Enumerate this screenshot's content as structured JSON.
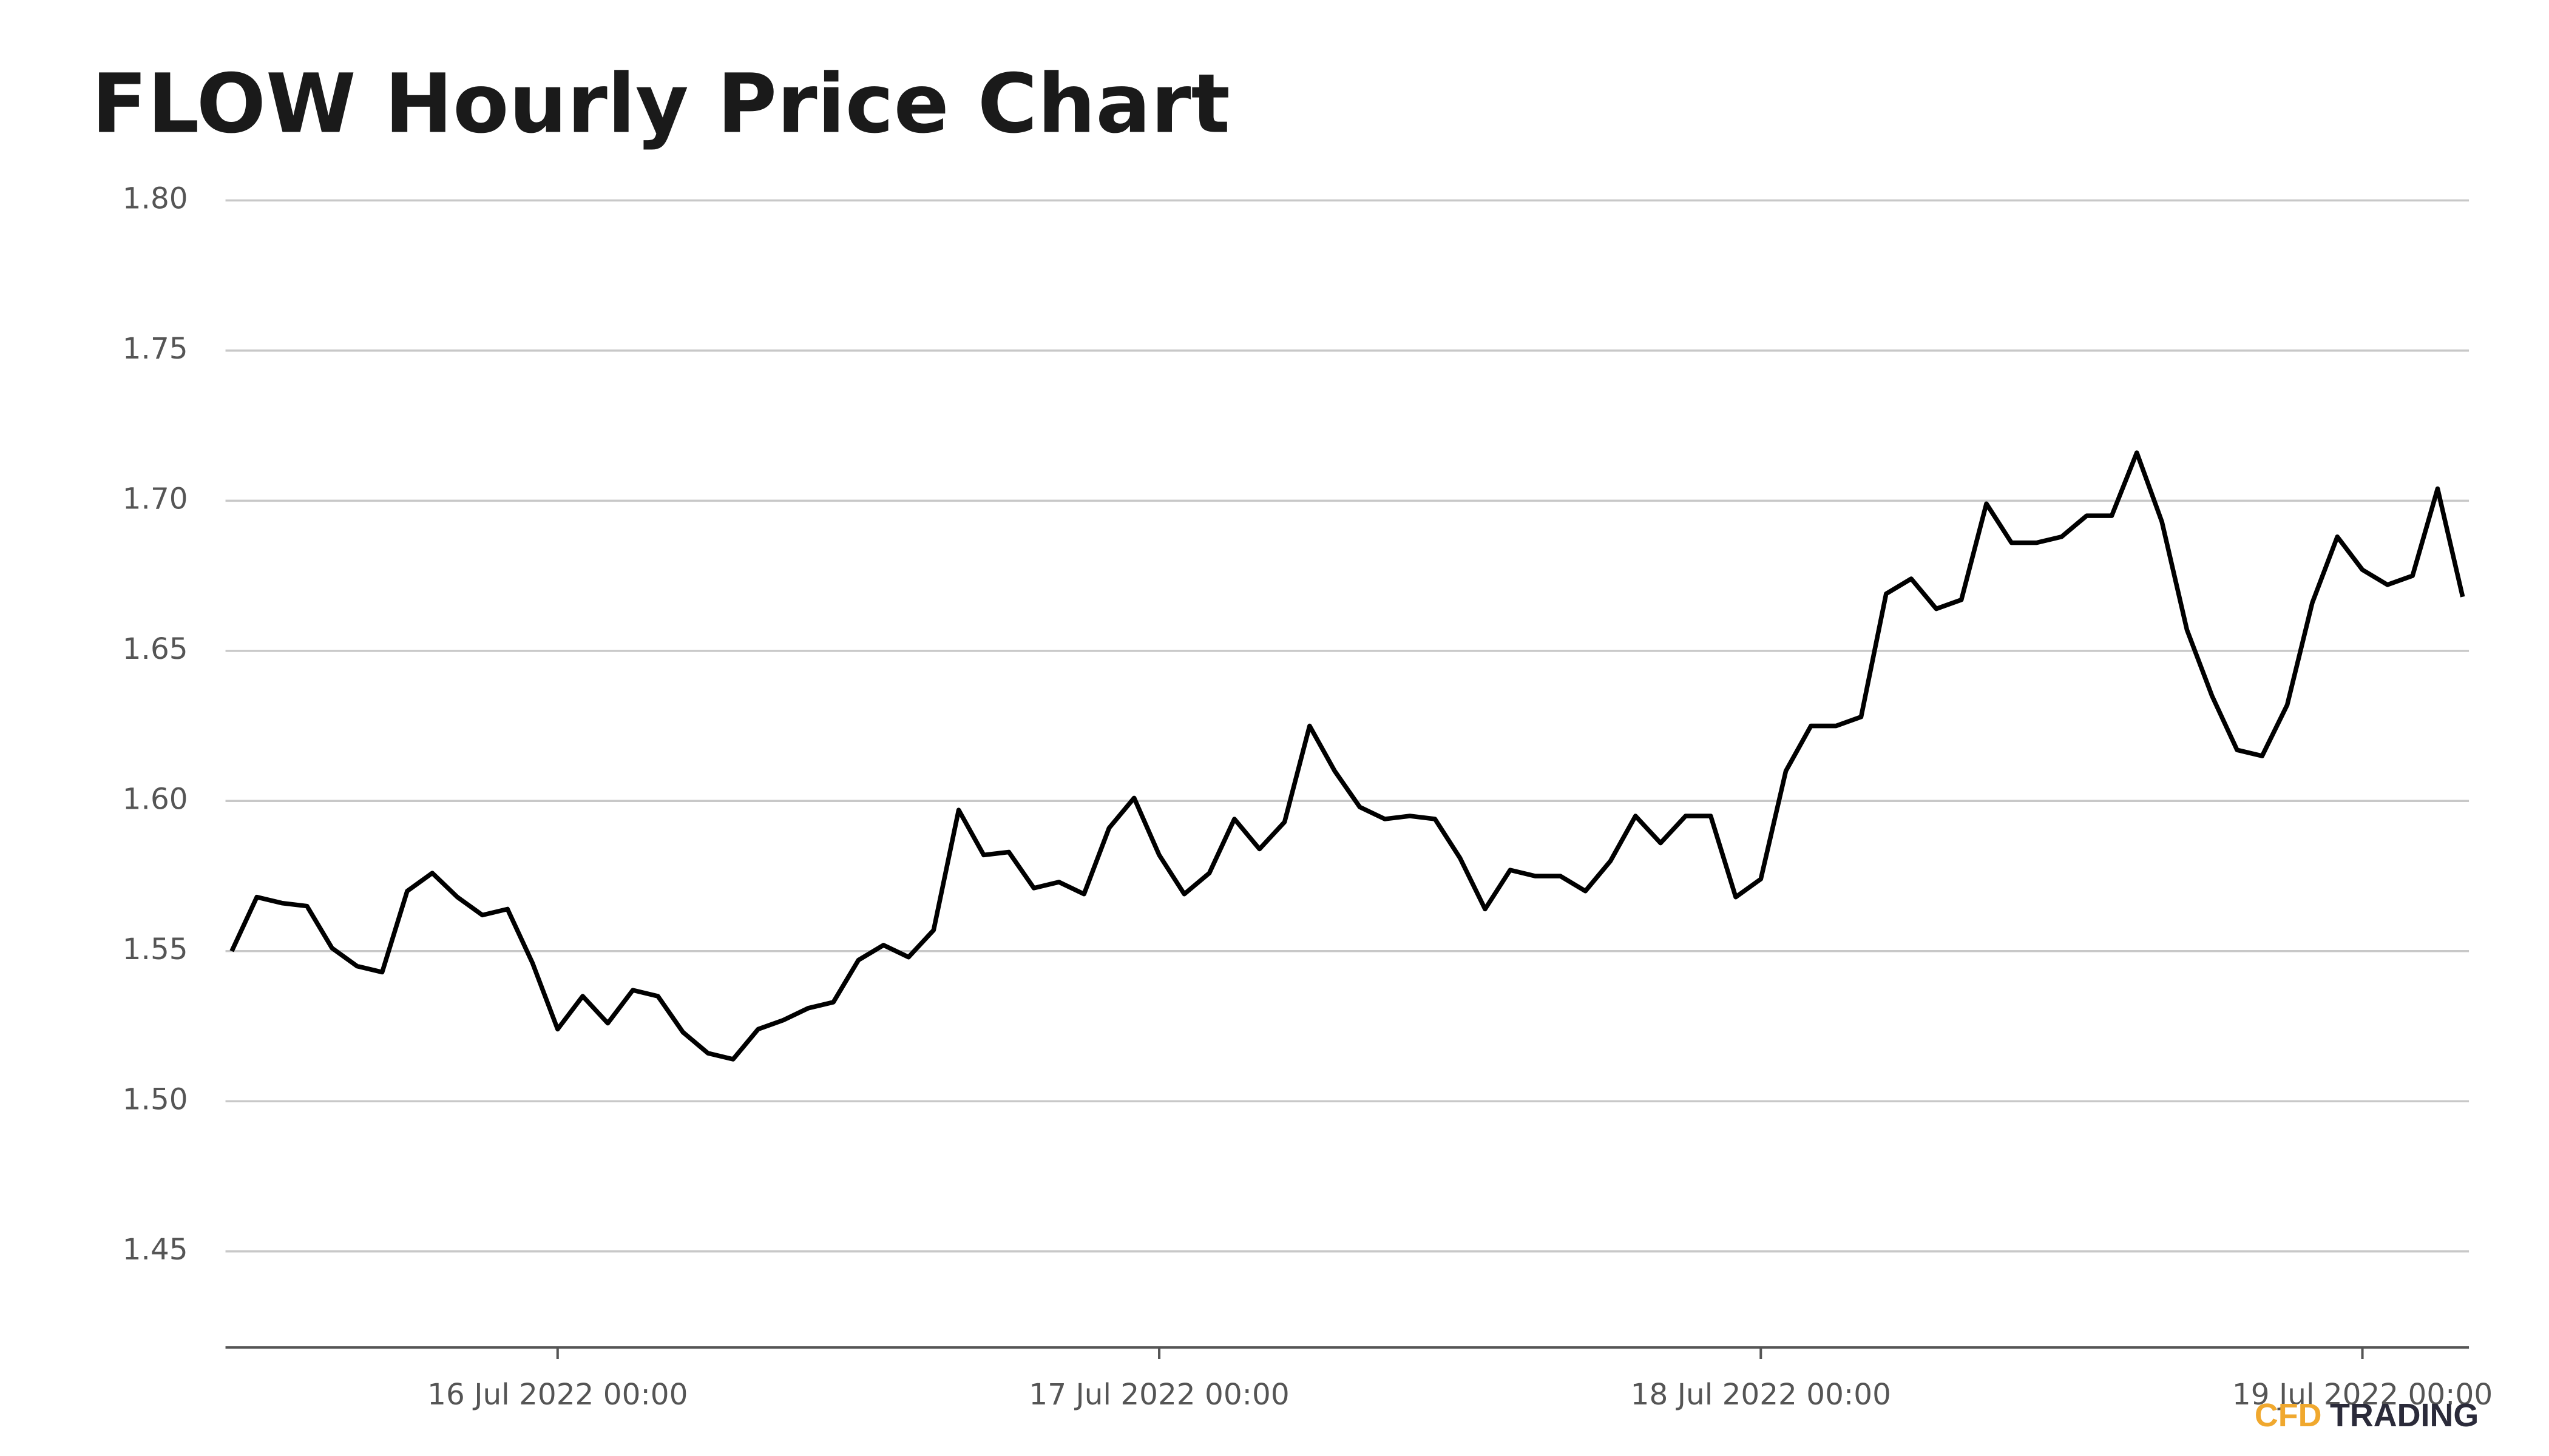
{
  "chart_data": {
    "type": "line",
    "title": "FLOW Hourly Price Chart",
    "x": [
      "2022-07-15 11:00",
      "2022-07-15 12:00",
      "2022-07-15 13:00",
      "2022-07-15 14:00",
      "2022-07-15 15:00",
      "2022-07-15 16:00",
      "2022-07-15 17:00",
      "2022-07-15 18:00",
      "2022-07-15 19:00",
      "2022-07-15 20:00",
      "2022-07-15 21:00",
      "2022-07-15 22:00",
      "2022-07-15 23:00",
      "2022-07-16 00:00",
      "2022-07-16 01:00",
      "2022-07-16 02:00",
      "2022-07-16 03:00",
      "2022-07-16 04:00",
      "2022-07-16 05:00",
      "2022-07-16 06:00",
      "2022-07-16 07:00",
      "2022-07-16 08:00",
      "2022-07-16 09:00",
      "2022-07-16 10:00",
      "2022-07-16 11:00",
      "2022-07-16 12:00",
      "2022-07-16 13:00",
      "2022-07-16 14:00",
      "2022-07-16 15:00",
      "2022-07-16 16:00",
      "2022-07-16 17:00",
      "2022-07-16 18:00",
      "2022-07-16 19:00",
      "2022-07-16 20:00",
      "2022-07-16 21:00",
      "2022-07-16 22:00",
      "2022-07-16 23:00",
      "2022-07-17 00:00",
      "2022-07-17 01:00",
      "2022-07-17 02:00",
      "2022-07-17 03:00",
      "2022-07-17 04:00",
      "2022-07-17 05:00",
      "2022-07-17 06:00",
      "2022-07-17 07:00",
      "2022-07-17 08:00",
      "2022-07-17 09:00",
      "2022-07-17 10:00",
      "2022-07-17 11:00",
      "2022-07-17 12:00",
      "2022-07-17 13:00",
      "2022-07-17 14:00",
      "2022-07-17 15:00",
      "2022-07-17 16:00",
      "2022-07-17 17:00",
      "2022-07-17 18:00",
      "2022-07-17 19:00",
      "2022-07-17 20:00",
      "2022-07-17 21:00",
      "2022-07-17 22:00",
      "2022-07-17 23:00",
      "2022-07-18 00:00",
      "2022-07-18 01:00",
      "2022-07-18 02:00",
      "2022-07-18 03:00",
      "2022-07-18 04:00",
      "2022-07-18 05:00",
      "2022-07-18 06:00",
      "2022-07-18 07:00",
      "2022-07-18 08:00",
      "2022-07-18 09:00",
      "2022-07-18 10:00",
      "2022-07-18 11:00",
      "2022-07-18 12:00",
      "2022-07-18 13:00",
      "2022-07-18 14:00",
      "2022-07-18 15:00",
      "2022-07-18 16:00",
      "2022-07-18 17:00",
      "2022-07-18 18:00",
      "2022-07-18 19:00",
      "2022-07-18 20:00",
      "2022-07-18 21:00",
      "2022-07-18 22:00",
      "2022-07-18 23:00",
      "2022-07-19 00:00",
      "2022-07-19 01:00",
      "2022-07-19 02:00",
      "2022-07-19 03:00",
      "2022-07-19 04:00"
    ],
    "series": [
      {
        "name": "FLOW",
        "color": "#000000",
        "values": [
          1.55,
          1.568,
          1.566,
          1.565,
          1.551,
          1.545,
          1.543,
          1.57,
          1.576,
          1.568,
          1.562,
          1.564,
          1.546,
          1.524,
          1.535,
          1.526,
          1.537,
          1.535,
          1.523,
          1.516,
          1.514,
          1.524,
          1.527,
          1.531,
          1.533,
          1.547,
          1.552,
          1.548,
          1.557,
          1.597,
          1.582,
          1.583,
          1.571,
          1.573,
          1.569,
          1.591,
          1.601,
          1.582,
          1.569,
          1.576,
          1.594,
          1.584,
          1.593,
          1.625,
          1.61,
          1.598,
          1.594,
          1.595,
          1.594,
          1.581,
          1.564,
          1.577,
          1.575,
          1.575,
          1.57,
          1.58,
          1.595,
          1.586,
          1.595,
          1.595,
          1.568,
          1.574,
          1.61,
          1.625,
          1.625,
          1.628,
          1.669,
          1.674,
          1.664,
          1.667,
          1.699,
          1.686,
          1.686,
          1.688,
          1.695,
          1.695,
          1.716,
          1.693,
          1.657,
          1.635,
          1.617,
          1.615,
          1.632,
          1.666,
          1.688,
          1.677,
          1.672,
          1.675,
          1.704,
          1.668
        ]
      }
    ],
    "xlim": [
      "2022-07-15 10:45",
      "2022-07-19 04:15"
    ],
    "xticks": [
      {
        "value": "2022-07-16 00:00",
        "label": "16 Jul 2022 00:00"
      },
      {
        "value": "2022-07-17 00:00",
        "label": "17 Jul 2022 00:00"
      },
      {
        "value": "2022-07-18 00:00",
        "label": "18 Jul 2022 00:00"
      },
      {
        "value": "2022-07-19 00:00",
        "label": "19 Jul 2022 00:00"
      }
    ],
    "ylim": [
      1.418,
      1.808
    ],
    "yticks": [
      {
        "value": 1.45,
        "label": "1.45"
      },
      {
        "value": 1.5,
        "label": "1.50"
      },
      {
        "value": 1.55,
        "label": "1.55"
      },
      {
        "value": 1.6,
        "label": "1.60"
      },
      {
        "value": 1.65,
        "label": "1.65"
      },
      {
        "value": 1.7,
        "label": "1.70"
      },
      {
        "value": 1.75,
        "label": "1.75"
      },
      {
        "value": 1.8,
        "label": "1.80"
      }
    ],
    "grid": true
  },
  "logo": {
    "accent": "CFD",
    "text": "TRADING"
  }
}
